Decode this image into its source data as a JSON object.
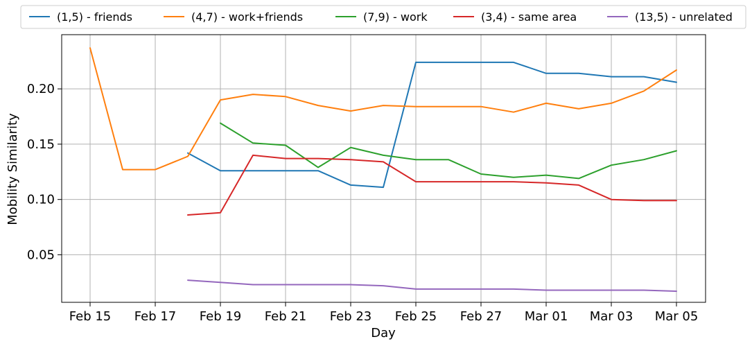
{
  "chart_data": {
    "type": "line",
    "xlabel": "Day",
    "ylabel": "Mobility Similarity",
    "x": [
      "Feb 15",
      "Feb 16",
      "Feb 17",
      "Feb 18",
      "Feb 19",
      "Feb 20",
      "Feb 21",
      "Feb 22",
      "Feb 23",
      "Feb 24",
      "Feb 25",
      "Feb 26",
      "Feb 27",
      "Feb 28",
      "Mar 01",
      "Mar 02",
      "Mar 03",
      "Mar 04",
      "Mar 05"
    ],
    "x_ticks": [
      "Feb 15",
      "Feb 17",
      "Feb 19",
      "Feb 21",
      "Feb 23",
      "Feb 25",
      "Feb 27",
      "Mar 01",
      "Mar 03",
      "Mar 05"
    ],
    "y_ticks": [
      "0.05",
      "0.10",
      "0.15",
      "0.20"
    ],
    "ylim": [
      0.007,
      0.249
    ],
    "grid": true,
    "legend_position": "top",
    "series": [
      {
        "name": "(1,5) - friends",
        "color": "#1f77b4",
        "values": [
          null,
          null,
          null,
          0.142,
          0.126,
          0.126,
          0.126,
          0.126,
          0.113,
          0.111,
          0.224,
          0.224,
          0.224,
          0.224,
          0.214,
          0.214,
          0.211,
          0.211,
          0.206
        ]
      },
      {
        "name": "(4,7) - work+friends",
        "color": "#ff7f0e",
        "values": [
          0.237,
          0.127,
          0.127,
          0.139,
          0.19,
          0.195,
          0.193,
          0.185,
          0.18,
          0.185,
          0.184,
          0.184,
          0.184,
          0.179,
          0.187,
          0.182,
          0.187,
          0.198,
          0.217
        ]
      },
      {
        "name": "(7,9) - work",
        "color": "#2ca02c",
        "values": [
          null,
          null,
          null,
          null,
          0.169,
          0.151,
          0.149,
          0.129,
          0.147,
          0.14,
          0.136,
          0.136,
          0.123,
          0.12,
          0.122,
          0.119,
          0.131,
          0.136,
          0.144
        ]
      },
      {
        "name": "(3,4) - same area",
        "color": "#d62728",
        "values": [
          null,
          null,
          null,
          0.086,
          0.088,
          0.14,
          0.137,
          0.137,
          0.136,
          0.134,
          0.116,
          0.116,
          0.116,
          0.116,
          0.115,
          0.113,
          0.1,
          0.099,
          0.099
        ]
      },
      {
        "name": "(13,5) - unrelated",
        "color": "#9467bd",
        "values": [
          null,
          null,
          null,
          0.027,
          0.025,
          0.023,
          0.023,
          0.023,
          0.023,
          0.022,
          0.019,
          0.019,
          0.019,
          0.019,
          0.018,
          0.018,
          0.018,
          0.018,
          0.017
        ]
      }
    ]
  }
}
